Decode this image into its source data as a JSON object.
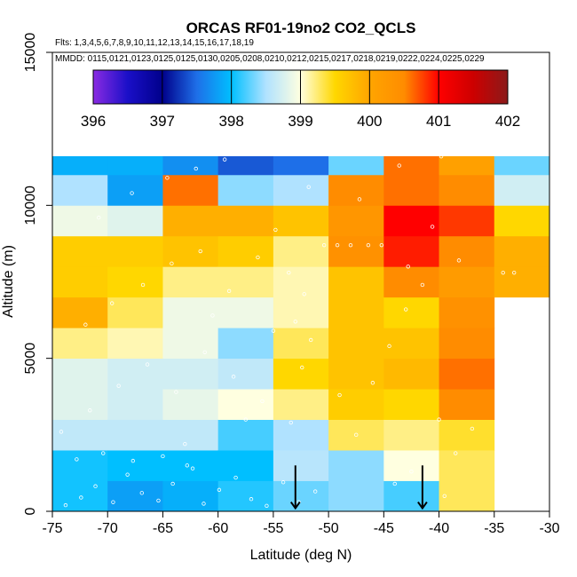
{
  "chart_data": {
    "type": "heatmap",
    "title": "ORCAS RF01-19no2 CO2_QCLS",
    "subtitle_flights": "Flts: 1,3,4,5,6,7,8,9,10,11,12,13,14,15,16,17,18,19",
    "subtitle_dates": "MMDD: 0115,0121,0123,0125,0125,0130,0205,0208,0210,0212,0215,0217,0218,0219,0222,0224,0225,0229",
    "xlabel": "Latitude (deg N)",
    "ylabel": "Altitude (m)",
    "xlim": [
      -75,
      -30
    ],
    "ylim": [
      0,
      15000
    ],
    "x_ticks": [
      -75,
      -70,
      -65,
      -60,
      -55,
      -50,
      -45,
      -40,
      -35,
      -30
    ],
    "x_tick_labels": [
      "-75",
      "-70",
      "-65",
      "-60",
      "-55",
      "-50",
      "-45",
      "-40",
      "-35",
      "-30"
    ],
    "y_ticks": [
      0,
      5000,
      10000,
      15000
    ],
    "y_tick_labels": [
      "0",
      "5000",
      "10000",
      "15000"
    ],
    "lat_bin_edges": [
      -75,
      -70,
      -65,
      -60,
      -55,
      -50,
      -45,
      -40,
      -35,
      -30
    ],
    "alt_bin_size_m": 1000,
    "colorbar": {
      "min": 396,
      "max": 402,
      "ticks": [
        396,
        397,
        398,
        399,
        400,
        401,
        402
      ],
      "tick_labels": [
        "396",
        "397",
        "398",
        "399",
        "400",
        "401",
        "402"
      ],
      "gradient_stops": [
        {
          "value": 396.0,
          "color": "#8a2be2"
        },
        {
          "value": 396.5,
          "color": "#1a0fc8"
        },
        {
          "value": 397.0,
          "color": "#00008b"
        },
        {
          "value": 397.5,
          "color": "#1e6fe8"
        },
        {
          "value": 398.0,
          "color": "#00bfff"
        },
        {
          "value": 398.5,
          "color": "#b0e2ff"
        },
        {
          "value": 399.0,
          "color": "#ffffe0"
        },
        {
          "value": 399.5,
          "color": "#ffd700"
        },
        {
          "value": 400.0,
          "color": "#ffa500"
        },
        {
          "value": 400.5,
          "color": "#ff8c00"
        },
        {
          "value": 401.0,
          "color": "#ff0000"
        },
        {
          "value": 401.5,
          "color": "#cd0000"
        },
        {
          "value": 402.0,
          "color": "#8b1a1a"
        }
      ]
    },
    "columns": [
      {
        "lat_start": -75,
        "cells": [
          {
            "alt": 0,
            "v": 398.05
          },
          {
            "alt": 1000,
            "v": 398.05
          },
          {
            "alt": 2000,
            "v": 398.6
          },
          {
            "alt": 3000,
            "v": 398.8
          },
          {
            "alt": 4000,
            "v": 398.8
          },
          {
            "alt": 5000,
            "v": 399.2
          },
          {
            "alt": 6000,
            "v": 399.9
          },
          {
            "alt": 7000,
            "v": 399.6
          },
          {
            "alt": 8000,
            "v": 399.6
          },
          {
            "alt": 9000,
            "v": 398.9
          },
          {
            "alt": 10000,
            "v": 398.5
          },
          {
            "alt": 11000,
            "v": 397.9
          }
        ]
      },
      {
        "lat_start": -70,
        "cells": [
          {
            "alt": 0,
            "v": 397.8
          },
          {
            "alt": 1000,
            "v": 398.0
          },
          {
            "alt": 2000,
            "v": 398.6
          },
          {
            "alt": 3000,
            "v": 398.7
          },
          {
            "alt": 4000,
            "v": 398.7
          },
          {
            "alt": 5000,
            "v": 399.1
          },
          {
            "alt": 6000,
            "v": 399.3
          },
          {
            "alt": 7000,
            "v": 399.5
          },
          {
            "alt": 8000,
            "v": 399.6
          },
          {
            "alt": 9000,
            "v": 398.8
          },
          {
            "alt": 10000,
            "v": 397.8
          },
          {
            "alt": 11000,
            "v": 397.9
          }
        ]
      },
      {
        "lat_start": -65,
        "cells": [
          {
            "alt": 0,
            "v": 397.9
          },
          {
            "alt": 1000,
            "v": 398.0
          },
          {
            "alt": 2000,
            "v": 398.6
          },
          {
            "alt": 3000,
            "v": 398.85
          },
          {
            "alt": 4000,
            "v": 398.7
          },
          {
            "alt": 5000,
            "v": 398.9
          },
          {
            "alt": 6000,
            "v": 398.9
          },
          {
            "alt": 7000,
            "v": 399.2
          },
          {
            "alt": 8000,
            "v": 399.7
          },
          {
            "alt": 9000,
            "v": 399.9
          },
          {
            "alt": 10000,
            "v": 400.6
          },
          {
            "alt": 11000,
            "v": 397.7
          }
        ]
      },
      {
        "lat_start": -60,
        "cells": [
          {
            "alt": 0,
            "v": 398.1
          },
          {
            "alt": 1000,
            "v": 398.0
          },
          {
            "alt": 2000,
            "v": 398.2
          },
          {
            "alt": 3000,
            "v": 399.0
          },
          {
            "alt": 4000,
            "v": 398.6
          },
          {
            "alt": 5000,
            "v": 398.4
          },
          {
            "alt": 6000,
            "v": 398.9
          },
          {
            "alt": 7000,
            "v": 399.2
          },
          {
            "alt": 8000,
            "v": 399.6
          },
          {
            "alt": 9000,
            "v": 399.9
          },
          {
            "alt": 10000,
            "v": 398.4
          },
          {
            "alt": 11000,
            "v": 397.4
          }
        ]
      },
      {
        "lat_start": -55,
        "cells": [
          {
            "alt": 0,
            "v": 398.3
          },
          {
            "alt": 1000,
            "v": 398.55
          },
          {
            "alt": 2000,
            "v": 398.5
          },
          {
            "alt": 3000,
            "v": 399.2
          },
          {
            "alt": 4000,
            "v": 399.5
          },
          {
            "alt": 5000,
            "v": 399.3
          },
          {
            "alt": 6000,
            "v": 399.1
          },
          {
            "alt": 7000,
            "v": 399.1
          },
          {
            "alt": 8000,
            "v": 399.2
          },
          {
            "alt": 9000,
            "v": 399.7
          },
          {
            "alt": 10000,
            "v": 398.5
          },
          {
            "alt": 11000,
            "v": 397.5
          }
        ]
      },
      {
        "lat_start": -50,
        "cells": [
          {
            "alt": 0,
            "v": 398.4
          },
          {
            "alt": 1000,
            "v": 398.4
          },
          {
            "alt": 2000,
            "v": 399.3
          },
          {
            "alt": 3000,
            "v": 399.6
          },
          {
            "alt": 4000,
            "v": 399.7
          },
          {
            "alt": 5000,
            "v": 399.7
          },
          {
            "alt": 6000,
            "v": 399.7
          },
          {
            "alt": 7000,
            "v": 399.7
          },
          {
            "alt": 8000,
            "v": 400.4
          },
          {
            "alt": 9000,
            "v": 400.3
          },
          {
            "alt": 10000,
            "v": 400.5
          },
          {
            "alt": 11000,
            "v": 398.3
          }
        ]
      },
      {
        "lat_start": -45,
        "cells": [
          {
            "alt": 0,
            "v": 398.2
          },
          {
            "alt": 1000,
            "v": 399.0
          },
          {
            "alt": 2000,
            "v": 399.2
          },
          {
            "alt": 3000,
            "v": 399.5
          },
          {
            "alt": 4000,
            "v": 399.8
          },
          {
            "alt": 5000,
            "v": 399.7
          },
          {
            "alt": 6000,
            "v": 399.5
          },
          {
            "alt": 7000,
            "v": 400.5
          },
          {
            "alt": 8000,
            "v": 400.9
          },
          {
            "alt": 9000,
            "v": 401.0
          },
          {
            "alt": 10000,
            "v": 400.6
          },
          {
            "alt": 11000,
            "v": 400.6
          }
        ]
      },
      {
        "lat_start": -40,
        "cells": [
          {
            "alt": 0,
            "v": 399.3
          },
          {
            "alt": 1000,
            "v": 399.3
          },
          {
            "alt": 2000,
            "v": 399.4
          },
          {
            "alt": 3000,
            "v": 400.5
          },
          {
            "alt": 4000,
            "v": 400.6
          },
          {
            "alt": 5000,
            "v": 400.5
          },
          {
            "alt": 6000,
            "v": 400.4
          },
          {
            "alt": 7000,
            "v": 400.2
          },
          {
            "alt": 8000,
            "v": 400.5
          },
          {
            "alt": 9000,
            "v": 400.8
          },
          {
            "alt": 10000,
            "v": 400.5
          },
          {
            "alt": 11000,
            "v": 400.1
          }
        ]
      },
      {
        "lat_start": -35,
        "cells": [
          {
            "alt": 7000,
            "v": 399.9
          },
          {
            "alt": 8000,
            "v": 399.9
          },
          {
            "alt": 9000,
            "v": 399.5
          },
          {
            "alt": 10000,
            "v": 398.7
          },
          {
            "alt": 11000,
            "v": 398.3
          }
        ]
      }
    ],
    "observation_points": [
      {
        "lat": -73.8,
        "alt": 200
      },
      {
        "lat": -72.4,
        "alt": 450
      },
      {
        "lat": -71.1,
        "alt": 820
      },
      {
        "lat": -69.5,
        "alt": 300
      },
      {
        "lat": -68.2,
        "alt": 1200
      },
      {
        "lat": -66.9,
        "alt": 600
      },
      {
        "lat": -65.4,
        "alt": 350
      },
      {
        "lat": -64.1,
        "alt": 900
      },
      {
        "lat": -62.8,
        "alt": 1500
      },
      {
        "lat": -61.3,
        "alt": 250
      },
      {
        "lat": -59.9,
        "alt": 700
      },
      {
        "lat": -58.4,
        "alt": 1100
      },
      {
        "lat": -57.0,
        "alt": 400
      },
      {
        "lat": -55.6,
        "alt": 180
      },
      {
        "lat": -54.1,
        "alt": 950
      },
      {
        "lat": -52.7,
        "alt": 300
      },
      {
        "lat": -51.2,
        "alt": 650
      },
      {
        "lat": -72.8,
        "alt": 1700
      },
      {
        "lat": -70.4,
        "alt": 1900
      },
      {
        "lat": -67.7,
        "alt": 1650
      },
      {
        "lat": -65.0,
        "alt": 1800
      },
      {
        "lat": -62.3,
        "alt": 1400
      },
      {
        "lat": -74.2,
        "alt": 2600
      },
      {
        "lat": -71.6,
        "alt": 3300
      },
      {
        "lat": -69.0,
        "alt": 4100
      },
      {
        "lat": -66.4,
        "alt": 4800
      },
      {
        "lat": -63.8,
        "alt": 3900
      },
      {
        "lat": -61.2,
        "alt": 5200
      },
      {
        "lat": -58.6,
        "alt": 4400
      },
      {
        "lat": -56.0,
        "alt": 3600
      },
      {
        "lat": -53.4,
        "alt": 2900
      },
      {
        "lat": -52.4,
        "alt": 4700
      },
      {
        "lat": -51.6,
        "alt": 5600
      },
      {
        "lat": -53.0,
        "alt": 6200
      },
      {
        "lat": -52.2,
        "alt": 7100
      },
      {
        "lat": -53.6,
        "alt": 7800
      },
      {
        "lat": -49.0,
        "alt": 3800
      },
      {
        "lat": -47.5,
        "alt": 2500
      },
      {
        "lat": -46.0,
        "alt": 4200
      },
      {
        "lat": -44.5,
        "alt": 5400
      },
      {
        "lat": -43.0,
        "alt": 6600
      },
      {
        "lat": -41.5,
        "alt": 7400
      },
      {
        "lat": -40.0,
        "alt": 3000
      },
      {
        "lat": -38.5,
        "alt": 1900
      },
      {
        "lat": -37.0,
        "alt": 2700
      },
      {
        "lat": -42.5,
        "alt": 1300
      },
      {
        "lat": -44.0,
        "alt": 900
      },
      {
        "lat": -39.5,
        "alt": 500
      },
      {
        "lat": -72.0,
        "alt": 6100
      },
      {
        "lat": -69.6,
        "alt": 6800
      },
      {
        "lat": -66.8,
        "alt": 7400
      },
      {
        "lat": -64.2,
        "alt": 8100
      },
      {
        "lat": -61.6,
        "alt": 8500
      },
      {
        "lat": -59.0,
        "alt": 7200
      },
      {
        "lat": -56.4,
        "alt": 8300
      },
      {
        "lat": -54.8,
        "alt": 9200
      },
      {
        "lat": -50.4,
        "alt": 8700
      },
      {
        "lat": -49.2,
        "alt": 8700
      },
      {
        "lat": -48.0,
        "alt": 8700
      },
      {
        "lat": -46.4,
        "alt": 8700
      },
      {
        "lat": -45.2,
        "alt": 8700
      },
      {
        "lat": -42.8,
        "alt": 8000
      },
      {
        "lat": -40.6,
        "alt": 9300
      },
      {
        "lat": -38.2,
        "alt": 8200
      },
      {
        "lat": -34.2,
        "alt": 7800
      },
      {
        "lat": -33.2,
        "alt": 7800
      },
      {
        "lat": -70.8,
        "alt": 9600
      },
      {
        "lat": -67.8,
        "alt": 10400
      },
      {
        "lat": -64.6,
        "alt": 10900
      },
      {
        "lat": -62.0,
        "alt": 11200
      },
      {
        "lat": -59.4,
        "alt": 11500
      },
      {
        "lat": -56.8,
        "alt": 11700
      },
      {
        "lat": -54.2,
        "alt": 11800
      },
      {
        "lat": -51.8,
        "alt": 10600
      },
      {
        "lat": -47.2,
        "alt": 10200
      },
      {
        "lat": -43.6,
        "alt": 11300
      },
      {
        "lat": -39.8,
        "alt": 11600
      },
      {
        "lat": -70.0,
        "alt": 11900
      },
      {
        "lat": -68.0,
        "alt": 11900
      },
      {
        "lat": -66.0,
        "alt": 11850
      },
      {
        "lat": -64.0,
        "alt": 11800
      },
      {
        "lat": -61.0,
        "alt": 11850
      },
      {
        "lat": -58.0,
        "alt": 11900
      },
      {
        "lat": -56.0,
        "alt": 11750
      },
      {
        "lat": -57.5,
        "alt": 3000
      },
      {
        "lat": -55.0,
        "alt": 5900
      },
      {
        "lat": -60.5,
        "alt": 6400
      },
      {
        "lat": -63.0,
        "alt": 2200
      }
    ],
    "markers": [
      {
        "type": "arrow",
        "lat": -53.0,
        "label": "arrow-down"
      },
      {
        "type": "arrow",
        "lat": -41.5,
        "label": "arrow-down"
      }
    ]
  }
}
